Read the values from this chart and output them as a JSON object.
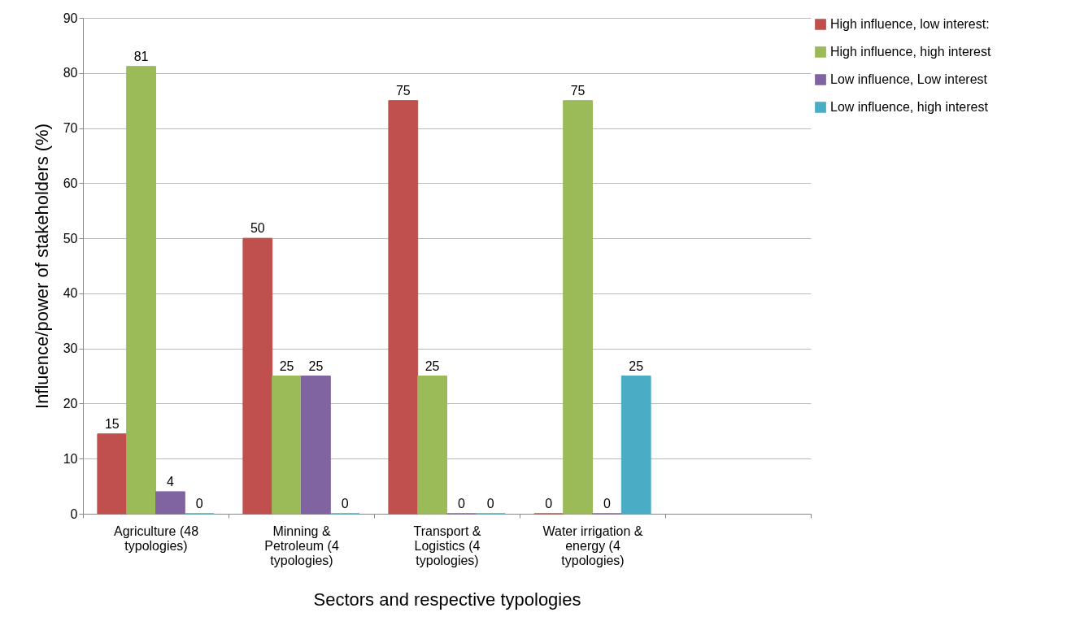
{
  "chart_data": {
    "type": "bar",
    "xlabel": "Sectors and respective typologies",
    "ylabel": "Influence/power of stakeholders (%)",
    "categories": [
      "Agriculture (48 typologies)",
      "Minning & Petroleum (4 typologies)",
      "Transport & Logistics (4 typologies)",
      "Water irrigation & energy (4 typologies)",
      null
    ],
    "series": [
      {
        "name": "High influence, low interest:",
        "color": "#c0504d",
        "values": [
          14.5,
          50,
          75,
          0,
          null
        ],
        "value_labels": [
          "15",
          "50",
          "75",
          "0",
          null
        ]
      },
      {
        "name": "High influence, high interest",
        "color": "#9bbb59",
        "values": [
          81.2,
          25,
          25,
          75,
          null
        ],
        "value_labels": [
          "81",
          "25",
          "25",
          "75",
          null
        ]
      },
      {
        "name": "Low influence, Low interest",
        "color": "#8064a2",
        "values": [
          4,
          25,
          0,
          0,
          null
        ],
        "value_labels": [
          "4",
          "25",
          "0",
          "0",
          null
        ]
      },
      {
        "name": "Low influence, high interest",
        "color": "#4bacc6",
        "values": [
          0,
          0,
          0,
          25,
          null
        ],
        "value_labels": [
          "0",
          "0",
          "0",
          "25",
          null
        ]
      }
    ],
    "ylim": [
      0,
      90
    ],
    "yticks": [
      0,
      10,
      20,
      30,
      40,
      50,
      60,
      70,
      80,
      90
    ],
    "grid": "y",
    "legend": "right"
  }
}
